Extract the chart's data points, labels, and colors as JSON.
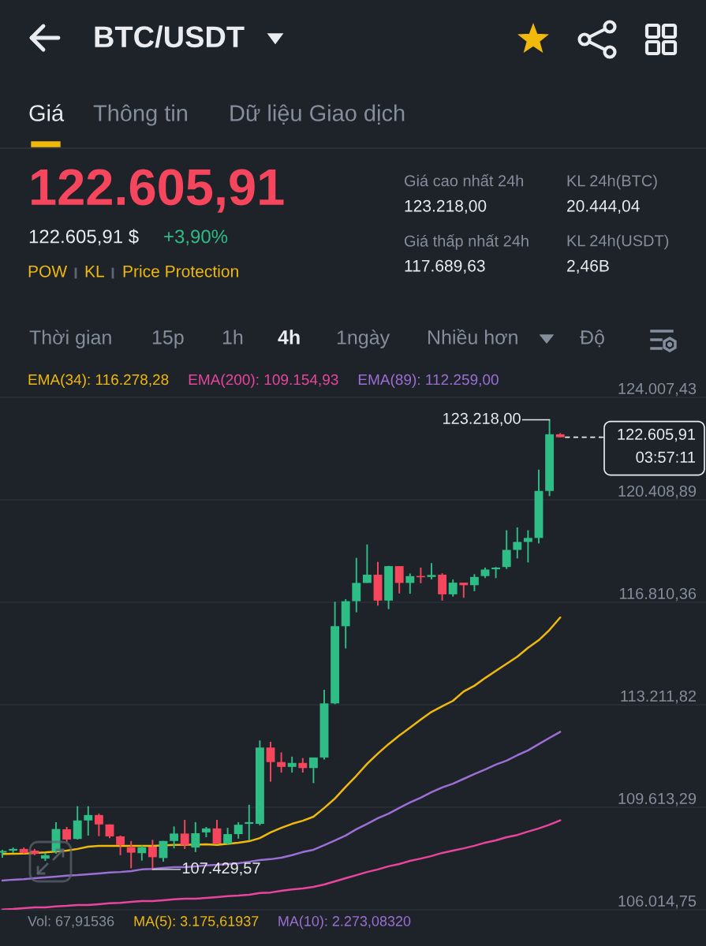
{
  "chart_data": [
    {
      "type": "other",
      "title": "BTC/USDT",
      "annotations": [
        "Giá",
        "Thông tin",
        "Dữ liệu Giao dịch",
        "122.605,91",
        "122.605,91 $",
        "+3,90%",
        "POW",
        "KL",
        "Price Protection",
        "Giá cao nhất 24h",
        "123.218,00",
        "Giá thấp nhất 24h",
        "117.689,63",
        "KL 24h(BTC)",
        "20.444,04",
        "KL 24h(USDT)",
        "2,46B",
        "Thời gian",
        "15p",
        "1h",
        "4h",
        "1ngày",
        "Nhiều hơn",
        "Độ"
      ]
    },
    {
      "type": "candlestick",
      "categories": [
        null,
        null,
        null,
        null,
        null,
        null,
        null,
        null,
        null,
        null,
        null,
        null,
        null,
        null,
        null,
        null,
        null,
        null,
        null,
        null,
        null,
        null,
        null,
        null,
        null,
        null,
        null,
        null,
        null,
        null,
        null,
        null,
        null,
        null,
        null,
        null,
        null,
        null,
        null,
        null,
        null,
        null,
        null,
        null,
        null,
        null,
        null,
        null,
        null,
        null,
        null,
        null,
        null
      ],
      "ohlc": [
        [
          108020,
          108120,
          107840,
          108080
        ],
        [
          108090,
          108200,
          108010,
          108150
        ],
        [
          108150,
          108200,
          107980,
          108010
        ],
        [
          108090,
          108150,
          107930,
          107980
        ],
        [
          107810,
          108010,
          107730,
          107930
        ],
        [
          108060,
          109090,
          107980,
          108850
        ],
        [
          108840,
          108920,
          108400,
          108480
        ],
        [
          108500,
          109650,
          108480,
          109150
        ],
        [
          109150,
          109650,
          108620,
          109340
        ],
        [
          109340,
          109390,
          108600,
          109010
        ],
        [
          109010,
          109010,
          108530,
          108590
        ],
        [
          108590,
          108620,
          107930,
          108290
        ],
        [
          108210,
          108430,
          107470,
          108020
        ],
        [
          108000,
          108270,
          107740,
          108210
        ],
        [
          108230,
          108470,
          107429.57,
          107860
        ],
        [
          107830,
          108430,
          107700,
          108430
        ],
        [
          108430,
          108940,
          108170,
          108690
        ],
        [
          108690,
          109170,
          108150,
          108290
        ],
        [
          108200,
          109090,
          108040,
          108700
        ],
        [
          108730,
          108920,
          108560,
          108870
        ],
        [
          108870,
          109170,
          108340,
          108340
        ],
        [
          108340,
          108890,
          108290,
          108670
        ],
        [
          108670,
          109090,
          108510,
          109000
        ],
        [
          109030,
          109700,
          108450,
          109090
        ],
        [
          109030,
          111960,
          108980,
          111710
        ],
        [
          111710,
          111910,
          110510,
          111200
        ],
        [
          111200,
          111540,
          110830,
          111030
        ],
        [
          111030,
          111390,
          110830,
          111170
        ],
        [
          111170,
          111340,
          110830,
          110990
        ],
        [
          110990,
          111360,
          110460,
          111360
        ],
        [
          111360,
          113740,
          111290,
          113260
        ],
        [
          113260,
          116830,
          113230,
          115970
        ],
        [
          115970,
          116920,
          115190,
          116850
        ],
        [
          116850,
          118370,
          116460,
          117490
        ],
        [
          117490,
          118840,
          117490,
          117780
        ],
        [
          117780,
          118230,
          116690,
          116870
        ],
        [
          116870,
          118090,
          116570,
          118080
        ],
        [
          118080,
          118080,
          117120,
          117490
        ],
        [
          117490,
          117820,
          117110,
          117730
        ],
        [
          117730,
          118030,
          117480,
          117690
        ],
        [
          117700,
          118190,
          117610,
          117770
        ],
        [
          117780,
          117830,
          116870,
          117090
        ],
        [
          117090,
          117610,
          117010,
          117500
        ],
        [
          117500,
          117500,
          116970,
          117410
        ],
        [
          117410,
          117800,
          117200,
          117700
        ],
        [
          117730,
          118030,
          117660,
          117960
        ],
        [
          117970,
          118050,
          117660,
          118030
        ],
        [
          118050,
          119340,
          117980,
          118650
        ],
        [
          118650,
          119440,
          118350,
          118930
        ],
        [
          118930,
          119340,
          118210,
          119070
        ],
        [
          119070,
          121470,
          118880,
          120720
        ],
        [
          120720,
          123218.0,
          120540,
          122710
        ],
        [
          122710,
          122750,
          122600,
          122605.91
        ]
      ],
      "series": [
        {
          "name": "EMA(34): 116.278,28",
          "type": "line",
          "color": "#f0b90b",
          "values": [
            107970,
            107980,
            107990,
            null,
            108030,
            null,
            108090,
            108150,
            108230,
            108260,
            108260,
            108260,
            108260,
            108260,
            108260,
            null,
            108290,
            null,
            null,
            108310,
            108290,
            null,
            108370,
            108420,
            108530,
            108730,
            108890,
            109030,
            109140,
            109280,
            109590,
            109920,
            110330,
            110720,
            111140,
            111500,
            111830,
            112130,
            112410,
            112690,
            112960,
            113160,
            113350,
            113680,
            113880,
            114150,
            114400,
            114650,
            114900,
            115210,
            115480,
            115840,
            116278.28
          ]
        },
        {
          "name": "EMA(200): 109.154,93",
          "type": "line",
          "color": "#e9459f",
          "values": [
            106020,
            106040,
            106070,
            106100,
            106100,
            106130,
            106150,
            106180,
            106180,
            106210,
            106240,
            106260,
            106290,
            106320,
            106320,
            106350,
            106380,
            106400,
            106400,
            106430,
            106460,
            106490,
            106510,
            106540,
            106600,
            106620,
            106680,
            106730,
            106760,
            106820,
            106900,
            107010,
            107120,
            107230,
            107340,
            107430,
            107540,
            107620,
            107730,
            107810,
            107900,
            108010,
            108090,
            108170,
            108260,
            108370,
            108450,
            108560,
            108640,
            108760,
            108870,
            109000,
            109154.93
          ]
        },
        {
          "name": "EMA(89): 112.259,00",
          "type": "line",
          "color": "#9c6fd6",
          "values": [
            107040,
            107070,
            107090,
            107120,
            107150,
            107180,
            107210,
            107230,
            107260,
            107290,
            107320,
            107340,
            107370,
            107430,
            107450,
            107480,
            107510,
            107510,
            107540,
            107570,
            107590,
            107620,
            107650,
            107700,
            107760,
            107790,
            107840,
            107930,
            108040,
            108120,
            108280,
            108450,
            108620,
            108840,
            109030,
            109230,
            109390,
            109590,
            109780,
            109950,
            110140,
            110310,
            110440,
            110610,
            110780,
            110940,
            111110,
            111250,
            111440,
            111610,
            111830,
            112050,
            112259.0
          ]
        }
      ],
      "ylim": [
        106014.75,
        124007.43
      ],
      "yticks": [
        {
          "value": 106014.75,
          "label": "106.014,75"
        },
        {
          "value": 109613.29,
          "label": "109.613,29"
        },
        {
          "value": 113211.82,
          "label": "113.211,82"
        },
        {
          "value": 116810.36,
          "label": "116.810,36"
        },
        {
          "value": 120408.89,
          "label": "120.408,89"
        },
        {
          "value": 124007.43,
          "label": "124.007,43"
        }
      ],
      "tick_labels": "y",
      "grid": "y",
      "legend": "top",
      "ref_lines": [
        {
          "axis": "y",
          "value": 122605.91,
          "label": "122.605,91\n03:57:11",
          "line_style": "dashed",
          "color": "#eaecef"
        }
      ],
      "annotations": [
        "123.218,00",
        "107.429,57"
      ]
    },
    {
      "type": "other",
      "annotations": [
        "Vol: 67,91536",
        "MA(5): 3.175,61937",
        "MA(10): 2.273,08320"
      ]
    }
  ]
}
